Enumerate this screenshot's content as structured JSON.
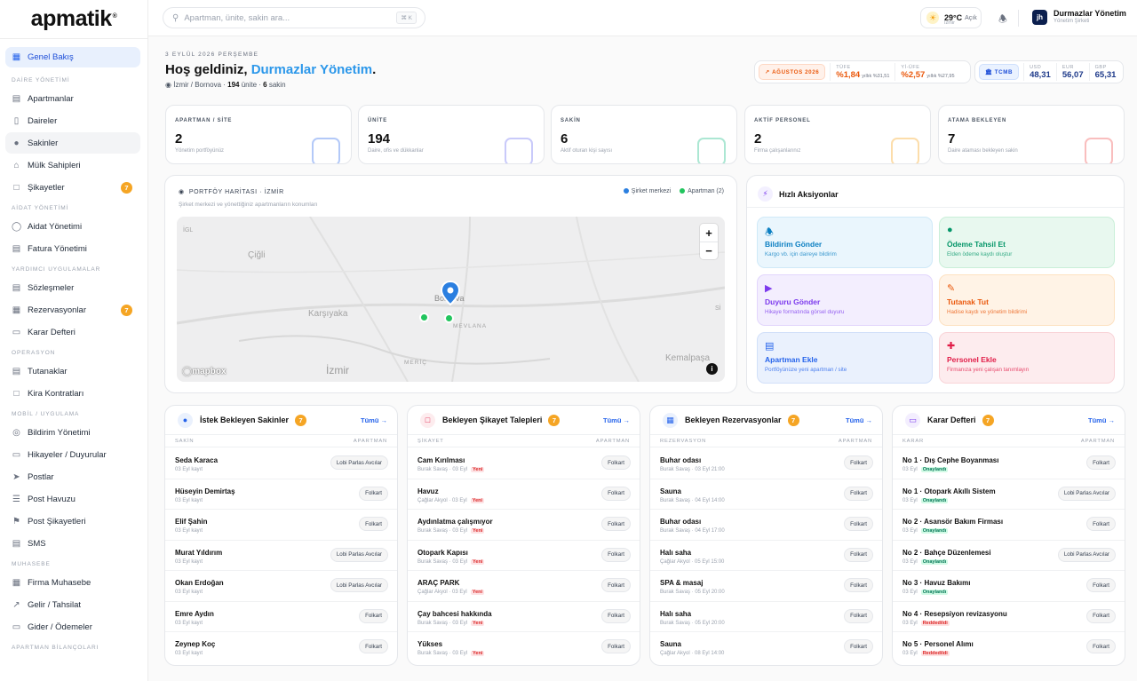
{
  "brand": {
    "name": "apmatik",
    "mark": "®"
  },
  "search": {
    "placeholder": "Apartman, ünite, sakin ara...",
    "shortcut": "⌘ K"
  },
  "weather": {
    "temp": "29°C",
    "desc": "Açık",
    "city": "İzmir"
  },
  "user": {
    "initials": "jh",
    "name": "Durmazlar Yönetim",
    "role": "Yönetim Şirketi"
  },
  "sidebar": {
    "items": [
      {
        "label": "Genel Bakış",
        "icon": "grid-icon",
        "active": true
      },
      {
        "section": "DAİRE YÖNETİMİ"
      },
      {
        "label": "Apartmanlar",
        "icon": "building-icon"
      },
      {
        "label": "Daireler",
        "icon": "door-icon"
      },
      {
        "label": "Sakinler",
        "icon": "users-icon",
        "hover": true
      },
      {
        "label": "Mülk Sahipleri",
        "icon": "home-icon"
      },
      {
        "label": "Şikayetler",
        "icon": "message-icon",
        "badge": "7"
      },
      {
        "section": "AİDAT YÖNETİMİ"
      },
      {
        "label": "Aidat Yönetimi",
        "icon": "coin-icon"
      },
      {
        "label": "Fatura Yönetimi",
        "icon": "receipt-icon"
      },
      {
        "section": "YARDIMCI UYGULAMALAR"
      },
      {
        "label": "Sözleşmeler",
        "icon": "contract-icon"
      },
      {
        "label": "Rezervasyonlar",
        "icon": "calendar-icon",
        "badge": "7"
      },
      {
        "label": "Karar Defteri",
        "icon": "book-icon"
      },
      {
        "section": "OPERASYON"
      },
      {
        "label": "Tutanaklar",
        "icon": "clipboard-icon"
      },
      {
        "label": "Kira Kontratları",
        "icon": "file-icon"
      },
      {
        "section": "MOBİL / UYGULAMA"
      },
      {
        "label": "Bildirim Yönetimi",
        "icon": "bell-icon"
      },
      {
        "label": "Hikayeler / Duyurular",
        "icon": "story-icon"
      },
      {
        "label": "Postlar",
        "icon": "send-icon"
      },
      {
        "label": "Post Havuzu",
        "icon": "list-icon"
      },
      {
        "label": "Post Şikayetleri",
        "icon": "flag-icon"
      },
      {
        "label": "SMS",
        "icon": "sms-icon"
      },
      {
        "section": "MUHASEBE"
      },
      {
        "label": "Firma Muhasebe",
        "icon": "calculator-icon"
      },
      {
        "label": "Gelir / Tahsilat",
        "icon": "trend-up-icon"
      },
      {
        "label": "Gider / Ödemeler",
        "icon": "wallet-icon"
      },
      {
        "section": "APARTMAN BİLANÇOLARI"
      }
    ]
  },
  "header": {
    "date": "3 EYLÜL 2026 PERŞEMBE",
    "greeting": "Hoş geldiniz, ",
    "name": "Durmazlar Yönetim",
    "period": ".",
    "location": "İzmir / Bornova · ",
    "units": "194",
    "units_label": " ünite · ",
    "residents": "6",
    "residents_label": " sakin"
  },
  "rates": {
    "inflation_tag": "AĞUSTOS 2026",
    "tufe": {
      "label": "TÜFE",
      "value": "%1,84",
      "sub": "yıllık %31,51"
    },
    "ufe": {
      "label": "Yİ-ÜFE",
      "value": "%2,57",
      "sub": "yıllık %27,95"
    },
    "tcmb_tag": "TCMB",
    "usd": {
      "label": "USD",
      "value": "48,31"
    },
    "eur": {
      "label": "EUR",
      "value": "56,07"
    },
    "gbp": {
      "label": "GBP",
      "value": "65,31"
    }
  },
  "stats": [
    {
      "label": "APARTMAN / SİTE",
      "value": "2",
      "sub": "Yönetim portföyünüz",
      "color": "#2563eb"
    },
    {
      "label": "ÜNİTE",
      "value": "194",
      "sub": "Daire, ofis ve dükkanlar",
      "color": "#6366f1"
    },
    {
      "label": "SAKİN",
      "value": "6",
      "sub": "Aktif oturan kişi sayısı",
      "color": "#10b981"
    },
    {
      "label": "AKTİF PERSONEL",
      "value": "2",
      "sub": "Firma çalışanlarınız",
      "color": "#f59e0b"
    },
    {
      "label": "ATAMA BEKLEYEN",
      "value": "7",
      "sub": "Daire ataması bekleyen sakin",
      "color": "#ef4444"
    }
  ],
  "map": {
    "title": "PORTFÖY HARİTASI · İZMİR",
    "subtitle": "Şirket merkezi ve yönettiğiniz apartmanların konumları",
    "legend_hq": "Şirket merkezi",
    "legend_apt": "Apartman (2)",
    "labels": [
      "İGL",
      "Çiğli",
      "Karşıyaka",
      "Bornova",
      "MEVLANA",
      "İzmir",
      "MERİÇ",
      "Kemalpaşa",
      "Sİ"
    ],
    "zoom_in": "+",
    "zoom_out": "−",
    "attribution": "mapbox",
    "info": "i"
  },
  "quick": {
    "title": "Hızlı Aksiyonlar",
    "actions": [
      {
        "title": "Bildirim Gönder",
        "sub": "Kargo vb. için daireye bildirim",
        "icon": "bell-icon"
      },
      {
        "title": "Ödeme Tahsil Et",
        "sub": "Elden ödeme kaydı oluştur",
        "icon": "cash-icon"
      },
      {
        "title": "Duyuru Gönder",
        "sub": "Hikaye formatında görsel duyuru",
        "icon": "megaphone-icon"
      },
      {
        "title": "Tutanak Tut",
        "sub": "Hadise kaydı ve yönetim bildirimi",
        "icon": "note-icon"
      },
      {
        "title": "Apartman Ekle",
        "sub": "Portföyünüze yeni apartman / site",
        "icon": "building-icon"
      },
      {
        "title": "Personel Ekle",
        "sub": "Firmanıza yeni çalışan tanımlayın",
        "icon": "user-plus-icon"
      }
    ]
  },
  "lists": [
    {
      "title": "İstek Bekleyen Sakinler",
      "badge": "7",
      "all": "Tümü →",
      "col1": "SAKİN",
      "col2": "APARTMAN",
      "rows": [
        {
          "name": "Seda Karaca",
          "meta": "03 Eyl kayıt",
          "pill": "Lobi Parlas Avcılar"
        },
        {
          "name": "Hüseyin Demirtaş",
          "meta": "03 Eyl kayıt",
          "pill": "Folkart"
        },
        {
          "name": "Elif Şahin",
          "meta": "03 Eyl kayıt",
          "pill": "Folkart"
        },
        {
          "name": "Murat Yıldırım",
          "meta": "03 Eyl kayıt",
          "pill": "Lobi Parlas Avcılar"
        },
        {
          "name": "Okan Erdoğan",
          "meta": "03 Eyl kayıt",
          "pill": "Lobi Parlas Avcılar"
        },
        {
          "name": "Emre Aydın",
          "meta": "03 Eyl kayıt",
          "pill": "Folkart"
        },
        {
          "name": "Zeynep Koç",
          "meta": "03 Eyl kayıt",
          "pill": "Folkart"
        }
      ]
    },
    {
      "title": "Bekleyen Şikayet Talepleri",
      "badge": "7",
      "all": "Tümü →",
      "col1": "ŞİKAYET",
      "col2": "APARTMAN",
      "rows": [
        {
          "name": "Cam Kırılması",
          "meta": "Burak Savaş · 03 Eyl",
          "tag": "Yeni",
          "tagtype": "new",
          "pill": "Folkart"
        },
        {
          "name": "Havuz",
          "meta": "Çağlar Akyol · 03 Eyl",
          "tag": "Yeni",
          "tagtype": "new",
          "pill": "Folkart"
        },
        {
          "name": "Aydınlatma çalışmıyor",
          "meta": "Burak Savaş · 03 Eyl",
          "tag": "Yeni",
          "tagtype": "new",
          "pill": "Folkart"
        },
        {
          "name": "Otopark Kapısı",
          "meta": "Burak Savaş · 03 Eyl",
          "tag": "Yeni",
          "tagtype": "new",
          "pill": "Folkart"
        },
        {
          "name": "ARAÇ PARK",
          "meta": "Çağlar Akyol · 03 Eyl",
          "tag": "Yeni",
          "tagtype": "new",
          "pill": "Folkart"
        },
        {
          "name": "Çay bahcesi hakkında",
          "meta": "Burak Savaş · 03 Eyl",
          "tag": "Yeni",
          "tagtype": "new",
          "pill": "Folkart"
        },
        {
          "name": "Yükses",
          "meta": "Burak Savaş · 03 Eyl",
          "tag": "Yeni",
          "tagtype": "new",
          "pill": "Folkart"
        }
      ]
    },
    {
      "title": "Bekleyen Rezervasyonlar",
      "badge": "7",
      "all": "Tümü →",
      "col1": "REZERVASYON",
      "col2": "APARTMAN",
      "rows": [
        {
          "name": "Buhar odası",
          "meta": "Burak Savaş · 03 Eyl 21:00",
          "pill": "Folkart"
        },
        {
          "name": "Sauna",
          "meta": "Burak Savaş · 04 Eyl 14:00",
          "pill": "Folkart"
        },
        {
          "name": "Buhar odası",
          "meta": "Burak Savaş · 04 Eyl 17:00",
          "pill": "Folkart"
        },
        {
          "name": "Halı saha",
          "meta": "Çağlar Akyol · 05 Eyl 15:00",
          "pill": "Folkart"
        },
        {
          "name": "SPA & masaj",
          "meta": "Burak Savaş · 05 Eyl 20:00",
          "pill": "Folkart"
        },
        {
          "name": "Halı saha",
          "meta": "Burak Savaş · 05 Eyl 20:00",
          "pill": "Folkart"
        },
        {
          "name": "Sauna",
          "meta": "Çağlar Akyol · 08 Eyl 14:00",
          "pill": "Folkart"
        }
      ]
    },
    {
      "title": "Karar Defteri",
      "badge": "7",
      "all": "Tümü →",
      "col1": "KARAR",
      "col2": "APARTMAN",
      "rows": [
        {
          "name": "No 1 · Dış Cephe Boyanması",
          "meta": "03 Eyl",
          "tag": "Onaylandı",
          "tagtype": "ok",
          "pill": "Folkart"
        },
        {
          "name": "No 1 · Otopark Akıllı Sistem",
          "meta": "03 Eyl",
          "tag": "Onaylandı",
          "tagtype": "ok",
          "pill": "Lobi Parlas Avcılar"
        },
        {
          "name": "No 2 · Asansör Bakım Firması",
          "meta": "03 Eyl",
          "tag": "Onaylandı",
          "tagtype": "ok",
          "pill": "Folkart"
        },
        {
          "name": "No 2 · Bahçe Düzenlemesi",
          "meta": "03 Eyl",
          "tag": "Onaylandı",
          "tagtype": "ok",
          "pill": "Lobi Parlas Avcılar"
        },
        {
          "name": "No 3 · Havuz Bakımı",
          "meta": "03 Eyl",
          "tag": "Onaylandı",
          "tagtype": "ok",
          "pill": "Folkart"
        },
        {
          "name": "No 4 · Resepsiyon revizasyonu",
          "meta": "03 Eyl",
          "tag": "Reddedildi",
          "tagtype": "rej",
          "pill": "Folkart"
        },
        {
          "name": "No 5 · Personel Alımı",
          "meta": "03 Eyl",
          "tag": "Reddedildi",
          "tagtype": "rej",
          "pill": "Folkart"
        }
      ]
    }
  ]
}
